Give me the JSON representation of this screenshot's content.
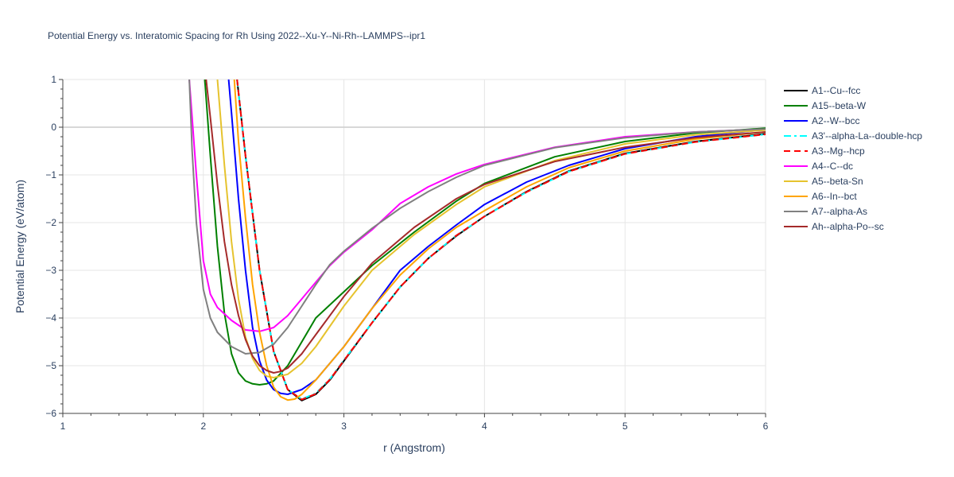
{
  "chart_data": {
    "type": "line",
    "title": "Potential Energy vs. Interatomic Spacing for Rh Using 2022--Xu-Y--Ni-Rh--LAMMPS--ipr1",
    "xlabel": "r (Angstrom)",
    "ylabel": "Potential Energy (eV/atom)",
    "xlim": [
      1,
      6
    ],
    "ylim": [
      -6,
      1
    ],
    "xticks": [
      1,
      2,
      3,
      4,
      5,
      6
    ],
    "yticks": [
      1,
      0,
      -1,
      -2,
      -3,
      -4,
      -5,
      -6
    ],
    "tick_labels_x": [
      "1",
      "2",
      "3",
      "4",
      "5",
      "6"
    ],
    "tick_labels_y": [
      "1",
      "0",
      "−1",
      "−2",
      "−3",
      "−4",
      "−5",
      "−6"
    ],
    "grid": true,
    "legend_position": "right",
    "series": [
      {
        "name": "A1--Cu--fcc",
        "color": "#000000",
        "dash": "solid",
        "x": [
          2.24,
          2.3,
          2.4,
          2.5,
          2.6,
          2.7,
          2.8,
          2.9,
          3.0,
          3.2,
          3.4,
          3.6,
          3.8,
          4.0,
          4.3,
          4.6,
          5.0,
          5.5,
          6.0
        ],
        "y": [
          1.0,
          -0.6,
          -3.0,
          -4.7,
          -5.5,
          -5.73,
          -5.6,
          -5.3,
          -4.9,
          -4.1,
          -3.35,
          -2.75,
          -2.28,
          -1.87,
          -1.35,
          -0.92,
          -0.55,
          -0.3,
          -0.14
        ]
      },
      {
        "name": "A15--beta-W",
        "color": "#008000",
        "dash": "solid",
        "x": [
          2.01,
          2.05,
          2.1,
          2.15,
          2.2,
          2.25,
          2.3,
          2.35,
          2.4,
          2.45,
          2.5,
          2.6,
          2.7,
          2.8,
          3.0,
          3.2,
          3.5,
          3.8,
          4.0,
          4.5,
          5.0,
          5.5,
          6.0
        ],
        "y": [
          1.0,
          -0.6,
          -2.5,
          -3.9,
          -4.75,
          -5.15,
          -5.32,
          -5.38,
          -5.4,
          -5.38,
          -5.32,
          -5.0,
          -4.5,
          -4.0,
          -3.45,
          -2.9,
          -2.2,
          -1.55,
          -1.18,
          -0.62,
          -0.3,
          -0.12,
          -0.02
        ]
      },
      {
        "name": "A2--W--bcc",
        "color": "#0000ff",
        "dash": "solid",
        "x": [
          2.18,
          2.2,
          2.25,
          2.3,
          2.35,
          2.4,
          2.45,
          2.5,
          2.55,
          2.6,
          2.7,
          2.8,
          3.0,
          3.2,
          3.4,
          3.6,
          3.8,
          4.0,
          4.3,
          4.6,
          5.0,
          5.5,
          6.0
        ],
        "y": [
          1.0,
          0.3,
          -1.5,
          -3.0,
          -4.2,
          -4.9,
          -5.3,
          -5.5,
          -5.58,
          -5.6,
          -5.5,
          -5.3,
          -4.6,
          -3.8,
          -3.0,
          -2.5,
          -2.05,
          -1.62,
          -1.15,
          -0.8,
          -0.45,
          -0.2,
          -0.05
        ]
      },
      {
        "name": "A3'--alpha-La--double-hcp",
        "color": "#00ffff",
        "dash": "dashdot",
        "x": [
          2.24,
          2.3,
          2.4,
          2.5,
          2.6,
          2.7,
          2.8,
          2.9,
          3.0,
          3.2,
          3.4,
          3.6,
          3.8,
          4.0,
          4.3,
          4.6,
          5.0,
          5.5,
          6.0
        ],
        "y": [
          1.0,
          -0.6,
          -3.0,
          -4.7,
          -5.5,
          -5.7,
          -5.58,
          -5.28,
          -4.88,
          -4.1,
          -3.35,
          -2.75,
          -2.27,
          -1.87,
          -1.36,
          -0.93,
          -0.56,
          -0.31,
          -0.15
        ]
      },
      {
        "name": "A3--Mg--hcp",
        "color": "#ff0000",
        "dash": "dash",
        "x": [
          2.24,
          2.3,
          2.4,
          2.5,
          2.6,
          2.7,
          2.8,
          2.9,
          3.0,
          3.2,
          3.4,
          3.6,
          3.8,
          4.0,
          4.3,
          4.6,
          5.0,
          5.5,
          6.0
        ],
        "y": [
          1.0,
          -0.6,
          -3.0,
          -4.7,
          -5.5,
          -5.71,
          -5.59,
          -5.29,
          -4.89,
          -4.1,
          -3.35,
          -2.75,
          -2.27,
          -1.87,
          -1.36,
          -0.93,
          -0.56,
          -0.31,
          -0.15
        ]
      },
      {
        "name": "A4--C--dc",
        "color": "#ff00ff",
        "dash": "solid",
        "x": [
          1.9,
          1.95,
          2.0,
          2.05,
          2.1,
          2.2,
          2.3,
          2.4,
          2.5,
          2.6,
          2.7,
          2.8,
          2.9,
          3.0,
          3.2,
          3.4,
          3.6,
          3.8,
          4.0,
          4.5,
          5.0,
          5.5,
          6.0
        ],
        "y": [
          1.0,
          -1.0,
          -2.8,
          -3.5,
          -3.78,
          -4.05,
          -4.25,
          -4.28,
          -4.2,
          -3.95,
          -3.6,
          -3.25,
          -2.9,
          -2.62,
          -2.15,
          -1.6,
          -1.25,
          -0.98,
          -0.78,
          -0.42,
          -0.2,
          -0.1,
          -0.04
        ]
      },
      {
        "name": "A5--beta-Sn",
        "color": "#e6c32e",
        "dash": "solid",
        "x": [
          2.1,
          2.15,
          2.2,
          2.25,
          2.3,
          2.35,
          2.4,
          2.45,
          2.5,
          2.6,
          2.7,
          2.8,
          3.0,
          3.2,
          3.5,
          3.8,
          4.0,
          4.5,
          5.0,
          5.5,
          6.0
        ],
        "y": [
          1.0,
          -0.8,
          -2.4,
          -3.6,
          -4.4,
          -4.85,
          -5.1,
          -5.22,
          -5.25,
          -5.18,
          -4.95,
          -4.6,
          -3.75,
          -3.0,
          -2.25,
          -1.62,
          -1.25,
          -0.7,
          -0.35,
          -0.16,
          -0.06
        ]
      },
      {
        "name": "A6--In--bct",
        "color": "#ffa500",
        "dash": "solid",
        "x": [
          2.22,
          2.25,
          2.3,
          2.35,
          2.4,
          2.45,
          2.5,
          2.55,
          2.6,
          2.65,
          2.7,
          2.8,
          3.0,
          3.2,
          3.4,
          3.6,
          3.8,
          4.0,
          4.3,
          4.6,
          5.0,
          5.5,
          6.0
        ],
        "y": [
          1.0,
          -0.3,
          -1.9,
          -3.3,
          -4.3,
          -5.0,
          -5.45,
          -5.65,
          -5.72,
          -5.7,
          -5.6,
          -5.3,
          -4.6,
          -3.8,
          -3.1,
          -2.55,
          -2.1,
          -1.75,
          -1.25,
          -0.85,
          -0.5,
          -0.25,
          -0.1
        ]
      },
      {
        "name": "A7--alpha-As",
        "color": "#808080",
        "dash": "solid",
        "x": [
          1.9,
          1.92,
          1.95,
          2.0,
          2.05,
          2.1,
          2.2,
          2.3,
          2.4,
          2.5,
          2.6,
          2.7,
          2.8,
          2.9,
          3.0,
          3.2,
          3.4,
          3.6,
          3.8,
          4.0,
          4.5,
          5.0,
          5.5,
          6.0
        ],
        "y": [
          1.0,
          -0.5,
          -2.0,
          -3.4,
          -4.0,
          -4.3,
          -4.6,
          -4.75,
          -4.72,
          -4.55,
          -4.2,
          -3.75,
          -3.3,
          -2.88,
          -2.6,
          -2.12,
          -1.7,
          -1.35,
          -1.05,
          -0.8,
          -0.43,
          -0.22,
          -0.1,
          -0.04
        ]
      },
      {
        "name": "Ah--alpha-Po--sc",
        "color": "#a52a2a",
        "dash": "solid",
        "x": [
          2.02,
          2.05,
          2.1,
          2.15,
          2.2,
          2.25,
          2.3,
          2.35,
          2.4,
          2.45,
          2.5,
          2.55,
          2.6,
          2.7,
          2.8,
          3.0,
          3.2,
          3.5,
          3.8,
          4.0,
          4.5,
          5.0,
          5.5,
          6.0
        ],
        "y": [
          1.0,
          0.2,
          -1.2,
          -2.4,
          -3.3,
          -3.95,
          -4.45,
          -4.8,
          -5.0,
          -5.1,
          -5.15,
          -5.12,
          -5.05,
          -4.75,
          -4.35,
          -3.55,
          -2.85,
          -2.1,
          -1.5,
          -1.2,
          -0.72,
          -0.42,
          -0.22,
          -0.1
        ]
      }
    ]
  }
}
